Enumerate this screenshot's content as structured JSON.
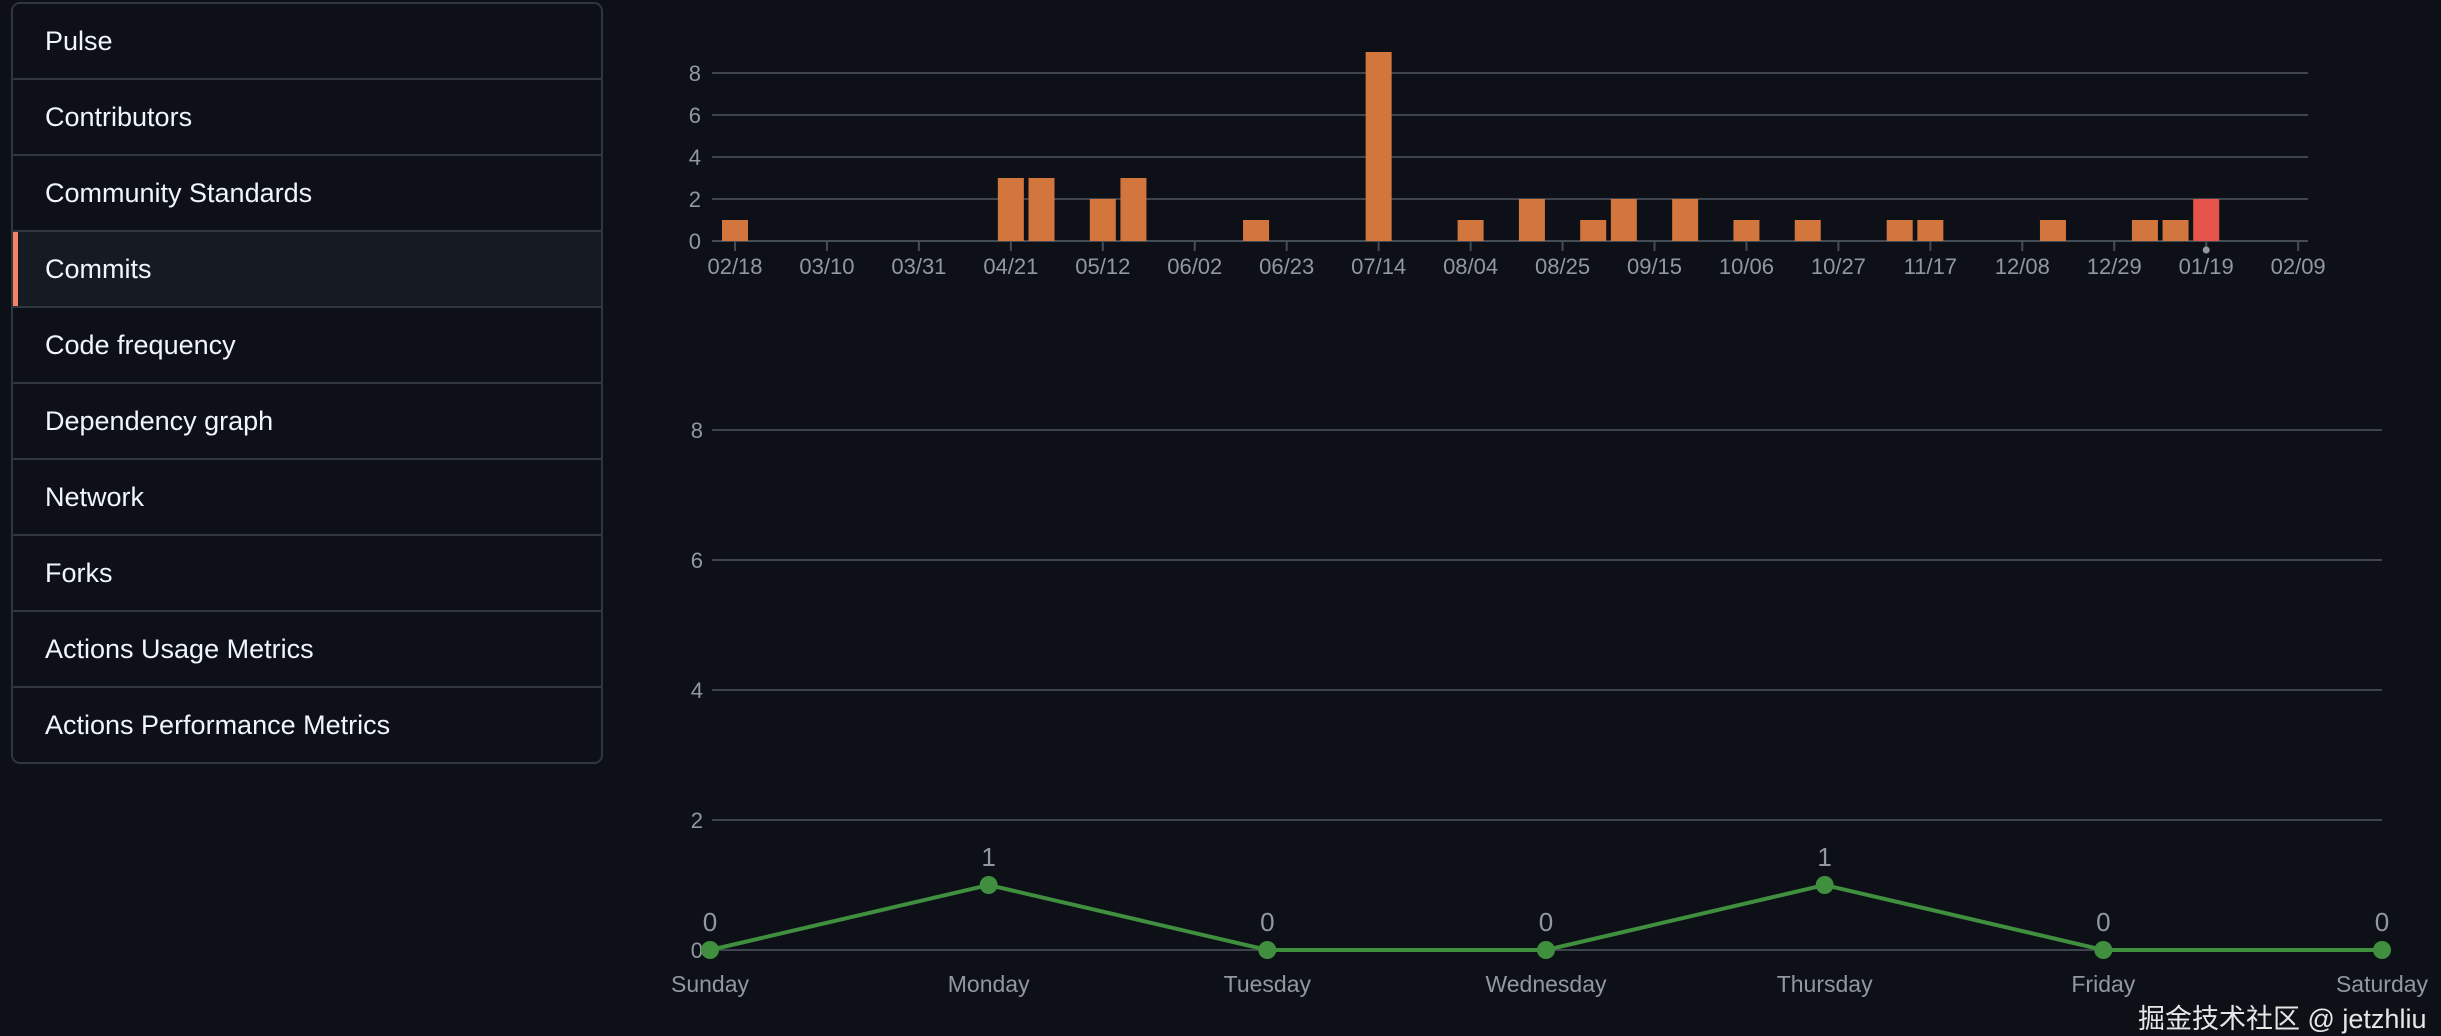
{
  "sidebar": {
    "items": [
      {
        "label": "Pulse"
      },
      {
        "label": "Contributors"
      },
      {
        "label": "Community Standards"
      },
      {
        "label": "Commits",
        "active": true
      },
      {
        "label": "Code frequency"
      },
      {
        "label": "Dependency graph"
      },
      {
        "label": "Network"
      },
      {
        "label": "Forks"
      },
      {
        "label": "Actions Usage Metrics"
      },
      {
        "label": "Actions Performance Metrics"
      }
    ]
  },
  "colors": {
    "bar": "#d3763d",
    "bar_highlight": "#e5534b",
    "line": "#3f8f3f",
    "accent": "#f78166"
  },
  "chart_data": [
    {
      "type": "bar",
      "title": "",
      "x_tick_labels": [
        "02/18",
        "03/10",
        "03/31",
        "04/21",
        "05/12",
        "06/02",
        "06/23",
        "07/14",
        "08/04",
        "08/25",
        "09/15",
        "10/06",
        "10/27",
        "11/17",
        "12/08",
        "12/29",
        "01/19",
        "02/09"
      ],
      "weeks_per_tick": 3,
      "values": [
        1,
        0,
        0,
        0,
        0,
        0,
        0,
        0,
        0,
        3,
        3,
        0,
        2,
        3,
        0,
        0,
        0,
        1,
        0,
        0,
        0,
        9,
        0,
        0,
        1,
        0,
        2,
        0,
        1,
        2,
        0,
        2,
        0,
        1,
        0,
        1,
        0,
        0,
        1,
        1,
        0,
        0,
        0,
        1,
        0,
        0,
        1,
        1,
        2,
        0,
        0,
        0
      ],
      "highlight_index": 48,
      "yticks": [
        0,
        2,
        4,
        6,
        8
      ],
      "ylim": [
        0,
        9
      ],
      "grid": true
    },
    {
      "type": "line",
      "categories": [
        "Sunday",
        "Monday",
        "Tuesday",
        "Wednesday",
        "Thursday",
        "Friday",
        "Saturday"
      ],
      "values": [
        0,
        1,
        0,
        0,
        1,
        0,
        0
      ],
      "data_labels": [
        "0",
        "1",
        "0",
        "0",
        "1",
        "0",
        "0"
      ],
      "yticks": [
        0,
        2,
        4,
        6,
        8
      ],
      "ylim": [
        0,
        8
      ],
      "grid": true
    }
  ],
  "watermark": "掘金技术社区 @ jetzhliu"
}
